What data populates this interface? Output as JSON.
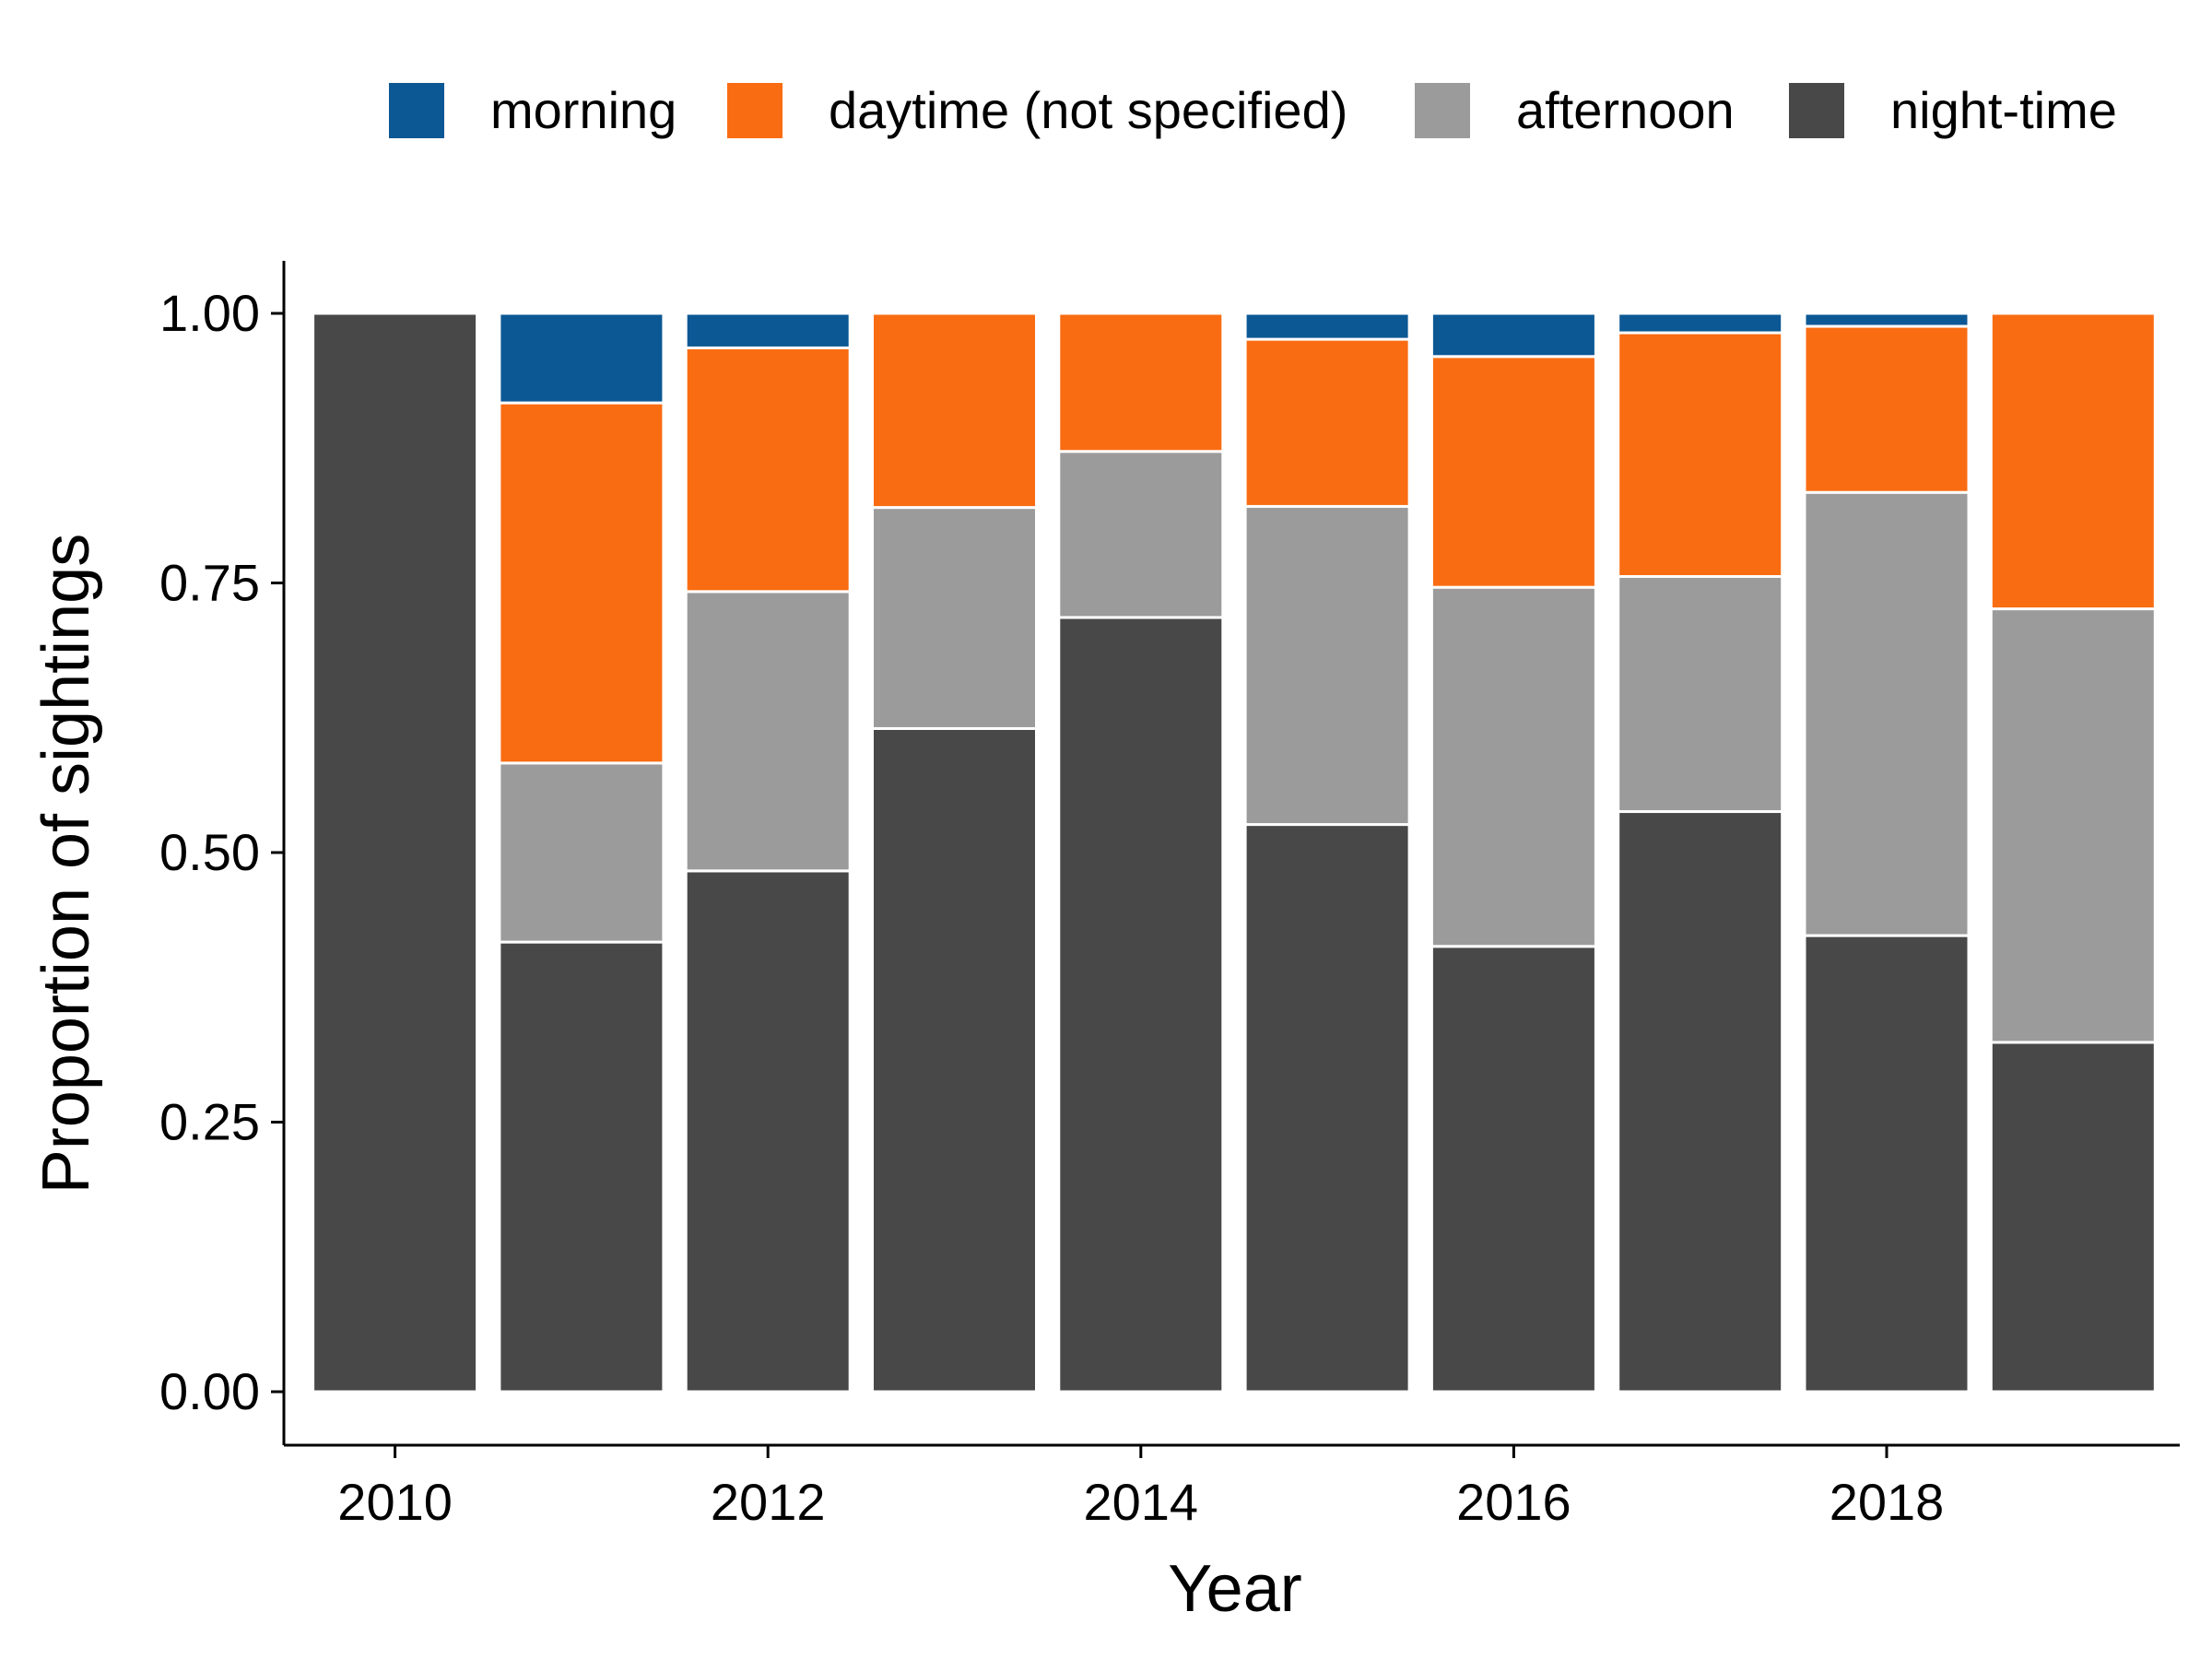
{
  "chart_data": {
    "type": "bar",
    "stacked": true,
    "xlabel": "Year",
    "ylabel": "Proportion of sightings",
    "ylim": [
      0,
      1
    ],
    "xlim": [
      2009.5,
      2019.5
    ],
    "x_ticks": [
      "2010",
      "2012",
      "2014",
      "2016",
      "2018"
    ],
    "y_ticks": [
      "0.00",
      "0.25",
      "0.50",
      "0.75",
      "1.00"
    ],
    "legend_position": "top",
    "categories": [
      2010,
      2011,
      2012,
      2013,
      2014,
      2015,
      2016,
      2017,
      2018,
      2019
    ],
    "series": [
      {
        "name": "night-time",
        "color": "#484848",
        "values": [
          1.0,
          0.417,
          0.483,
          0.615,
          0.718,
          0.526,
          0.413,
          0.538,
          0.423,
          0.324
        ]
      },
      {
        "name": "afternoon",
        "color": "#9b9b9b",
        "values": [
          0.0,
          0.166,
          0.259,
          0.205,
          0.154,
          0.295,
          0.333,
          0.218,
          0.411,
          0.402
        ]
      },
      {
        "name": "daytime (not specified)",
        "color": "#f96c12",
        "values": [
          0.0,
          0.334,
          0.226,
          0.18,
          0.128,
          0.155,
          0.214,
          0.226,
          0.154,
          0.274
        ]
      },
      {
        "name": "morning",
        "color": "#0c5894",
        "values": [
          0.0,
          0.083,
          0.032,
          0.0,
          0.0,
          0.024,
          0.04,
          0.018,
          0.012,
          0.0
        ]
      }
    ],
    "legend_order": [
      "morning",
      "daytime (not specified)",
      "afternoon",
      "night-time"
    ],
    "grid": false
  }
}
